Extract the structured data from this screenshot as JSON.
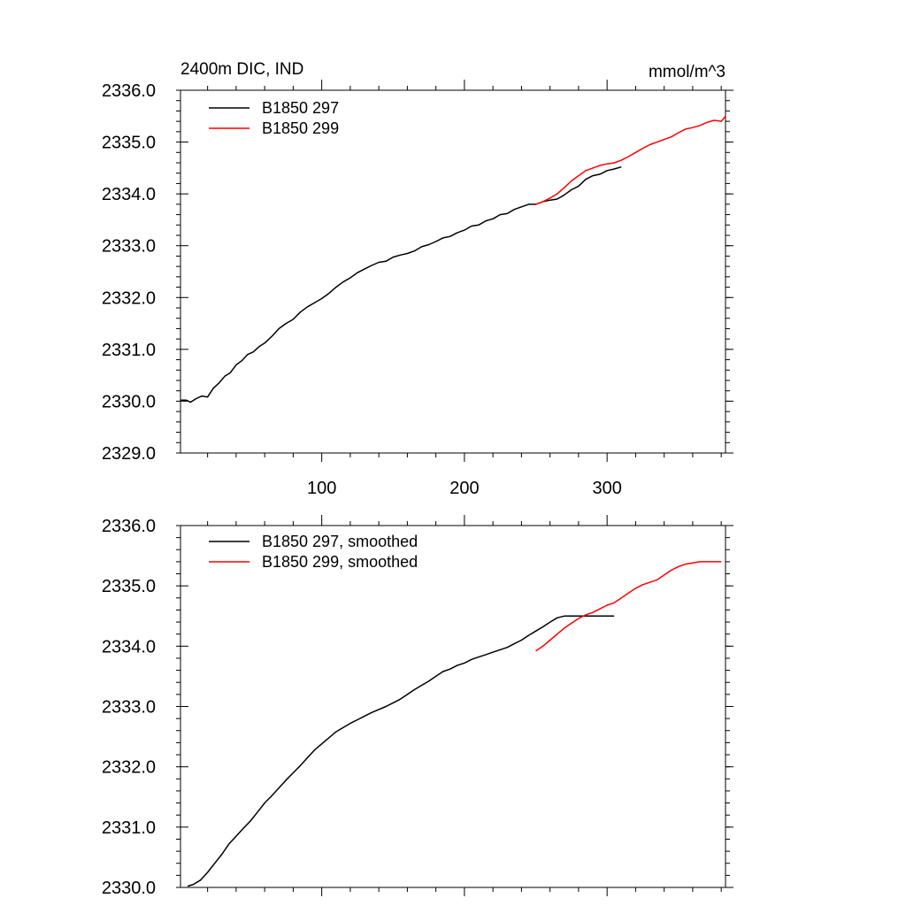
{
  "chart_data": [
    {
      "type": "line",
      "title_left": "2400m DIC, IND",
      "title_right": "mmol/m^3",
      "xlim": [
        1,
        383
      ],
      "ylim": [
        2329.0,
        2336.0
      ],
      "x_ticks": [
        100,
        200,
        300
      ],
      "x_tick_labels": [
        "100",
        "200",
        "300"
      ],
      "y_ticks": [
        2329.0,
        2330.0,
        2331.0,
        2332.0,
        2333.0,
        2334.0,
        2335.0,
        2336.0
      ],
      "y_tick_labels": [
        "2329.0",
        "2330.0",
        "2331.0",
        "2332.0",
        "2333.0",
        "2334.0",
        "2335.0",
        "2336.0"
      ],
      "legend_position": "top-left",
      "series": [
        {
          "name": "B1850 297",
          "color": "#000000",
          "x": [
            1,
            5,
            8,
            12,
            16,
            20,
            24,
            28,
            32,
            36,
            40,
            44,
            48,
            52,
            56,
            60,
            65,
            70,
            75,
            80,
            85,
            90,
            95,
            100,
            105,
            110,
            115,
            120,
            125,
            130,
            135,
            140,
            145,
            150,
            155,
            160,
            165,
            170,
            175,
            180,
            185,
            190,
            195,
            200,
            205,
            210,
            215,
            220,
            225,
            230,
            235,
            240,
            245,
            250,
            255,
            260,
            265,
            270,
            275,
            280,
            285,
            290,
            295,
            300,
            305,
            310
          ],
          "y": [
            2330.02,
            2330.02,
            2329.98,
            2330.05,
            2330.1,
            2330.08,
            2330.25,
            2330.35,
            2330.48,
            2330.55,
            2330.7,
            2330.78,
            2330.9,
            2330.95,
            2331.05,
            2331.12,
            2331.25,
            2331.4,
            2331.5,
            2331.58,
            2331.72,
            2331.82,
            2331.9,
            2331.98,
            2332.08,
            2332.2,
            2332.3,
            2332.38,
            2332.48,
            2332.55,
            2332.62,
            2332.68,
            2332.7,
            2332.78,
            2332.82,
            2332.85,
            2332.9,
            2332.98,
            2333.02,
            2333.08,
            2333.15,
            2333.18,
            2333.25,
            2333.3,
            2333.38,
            2333.4,
            2333.48,
            2333.52,
            2333.6,
            2333.62,
            2333.7,
            2333.75,
            2333.8,
            2333.8,
            2333.85,
            2333.88,
            2333.9,
            2333.98,
            2334.08,
            2334.15,
            2334.28,
            2334.35,
            2334.38,
            2334.45,
            2334.48,
            2334.52
          ]
        },
        {
          "name": "B1850 299",
          "color": "#ff0000",
          "x": [
            250,
            255,
            260,
            265,
            270,
            275,
            280,
            285,
            290,
            295,
            300,
            305,
            310,
            315,
            320,
            325,
            330,
            335,
            340,
            345,
            350,
            355,
            360,
            365,
            370,
            375,
            380,
            383
          ],
          "y": [
            2333.8,
            2333.85,
            2333.92,
            2334.0,
            2334.12,
            2334.25,
            2334.35,
            2334.45,
            2334.5,
            2334.55,
            2334.58,
            2334.6,
            2334.65,
            2334.72,
            2334.8,
            2334.88,
            2334.95,
            2335.0,
            2335.05,
            2335.1,
            2335.18,
            2335.25,
            2335.28,
            2335.32,
            2335.38,
            2335.42,
            2335.4,
            2335.5
          ]
        }
      ]
    },
    {
      "type": "line",
      "xlim": [
        1,
        383
      ],
      "ylim": [
        2330.0,
        2336.0
      ],
      "x_ticks": [
        100,
        200,
        300
      ],
      "y_ticks": [
        2330.0,
        2331.0,
        2332.0,
        2333.0,
        2334.0,
        2335.0,
        2336.0
      ],
      "y_tick_labels": [
        "2330.0",
        "2331.0",
        "2332.0",
        "2333.0",
        "2334.0",
        "2335.0",
        "2336.0"
      ],
      "legend_position": "top-left",
      "series": [
        {
          "name": "B1850 297, smoothed",
          "color": "#000000",
          "x": [
            6,
            10,
            15,
            20,
            25,
            30,
            35,
            40,
            45,
            50,
            55,
            60,
            65,
            70,
            75,
            80,
            85,
            90,
            95,
            100,
            105,
            110,
            115,
            120,
            125,
            130,
            135,
            140,
            145,
            150,
            155,
            160,
            165,
            170,
            175,
            180,
            185,
            190,
            195,
            200,
            205,
            210,
            215,
            220,
            225,
            230,
            235,
            240,
            245,
            250,
            255,
            260,
            265,
            270,
            275,
            280,
            285,
            290,
            295,
            300,
            305
          ],
          "y": [
            2330.02,
            2330.05,
            2330.12,
            2330.25,
            2330.4,
            2330.55,
            2330.72,
            2330.85,
            2330.98,
            2331.1,
            2331.25,
            2331.4,
            2331.52,
            2331.65,
            2331.78,
            2331.9,
            2332.02,
            2332.15,
            2332.28,
            2332.38,
            2332.48,
            2332.58,
            2332.65,
            2332.72,
            2332.78,
            2332.84,
            2332.9,
            2332.95,
            2333.0,
            2333.06,
            2333.12,
            2333.2,
            2333.28,
            2333.35,
            2333.42,
            2333.5,
            2333.58,
            2333.62,
            2333.68,
            2333.72,
            2333.78,
            2333.82,
            2333.86,
            2333.9,
            2333.94,
            2333.98,
            2334.04,
            2334.1,
            2334.18,
            2334.25,
            2334.32,
            2334.4,
            2334.47,
            2334.5,
            2334.5,
            2334.5,
            2334.5,
            2334.5,
            2334.5,
            2334.5,
            2334.5
          ]
        },
        {
          "name": "B1850 299, smoothed",
          "color": "#ff0000",
          "x": [
            250,
            255,
            260,
            265,
            270,
            275,
            280,
            285,
            290,
            295,
            300,
            305,
            310,
            315,
            320,
            325,
            330,
            335,
            340,
            345,
            350,
            355,
            360,
            365,
            370,
            375,
            380
          ],
          "y": [
            2333.92,
            2334.0,
            2334.1,
            2334.2,
            2334.3,
            2334.38,
            2334.46,
            2334.52,
            2334.56,
            2334.62,
            2334.68,
            2334.72,
            2334.8,
            2334.88,
            2334.96,
            2335.02,
            2335.06,
            2335.1,
            2335.18,
            2335.26,
            2335.32,
            2335.36,
            2335.38,
            2335.4,
            2335.4,
            2335.4,
            2335.4
          ]
        }
      ]
    }
  ]
}
